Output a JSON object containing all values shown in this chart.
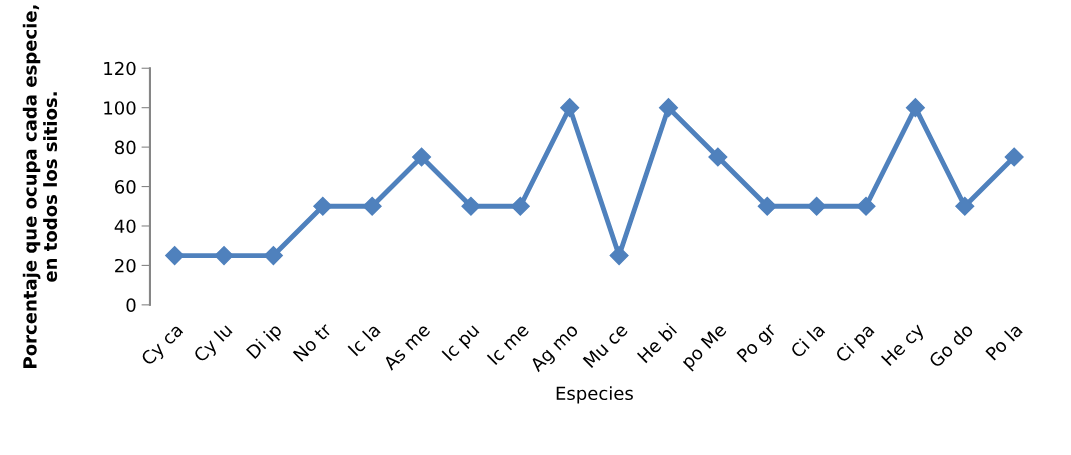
{
  "chart_data": {
    "type": "line",
    "categories": [
      "Cy ca",
      "Cy lu",
      "Di ip",
      "No tr",
      "Ic la",
      "As me",
      "Ic pu",
      "Ic me",
      "Ag mo",
      "Mu ce",
      "He bi",
      "po Me",
      "Po gr",
      "Ci la",
      "Ci pa",
      "He cy",
      "Go do",
      "Po la"
    ],
    "series": [
      {
        "color": "#4f81bd",
        "values": [
          25,
          25,
          25,
          50,
          50,
          75,
          50,
          50,
          100,
          25,
          100,
          75,
          50,
          50,
          50,
          100,
          50,
          75
        ]
      }
    ],
    "xlabel": "Especies",
    "ylabel": "Porcentaje que ocupa cada especie,\nen todos los sitios.",
    "ylim": [
      0,
      120
    ],
    "yticks": [
      0,
      20,
      40,
      60,
      80,
      100,
      120
    ],
    "grid": false,
    "legend": false,
    "marker": "diamond",
    "line_style": "solid"
  }
}
